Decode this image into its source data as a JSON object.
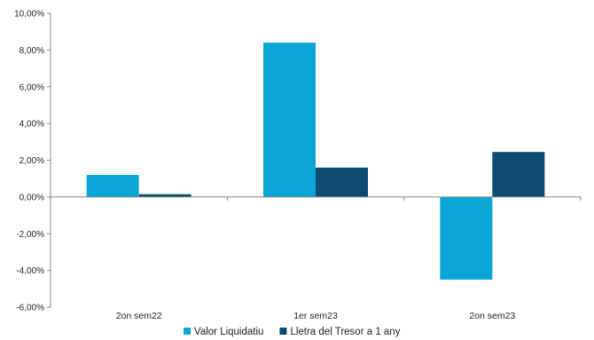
{
  "chart_data": {
    "type": "bar",
    "categories": [
      "2on sem22",
      "1er sem23",
      "2on sem23"
    ],
    "series": [
      {
        "name": "Valor Liquidatiu",
        "color": "#0aa6d6",
        "values": [
          1.2,
          8.4,
          -4.5
        ]
      },
      {
        "name": "Lletra del Tresor a 1 any",
        "color": "#0d4a72",
        "values": [
          0.15,
          1.6,
          2.45
        ]
      }
    ],
    "ylim": [
      -6,
      10
    ],
    "yticks": [
      -6,
      -4,
      -2,
      0,
      2,
      4,
      6,
      8,
      10
    ],
    "ytick_labels": [
      "-6,00%",
      "-4,00%",
      "-2,00%",
      "0,00%",
      "2,00%",
      "4,00%",
      "6,00%",
      "8,00%",
      "10,00%"
    ],
    "grid": false,
    "legend_position": "bottom",
    "title": "",
    "xlabel": "",
    "ylabel": ""
  },
  "colors": {
    "axis": "#888888",
    "text": "#222222"
  }
}
